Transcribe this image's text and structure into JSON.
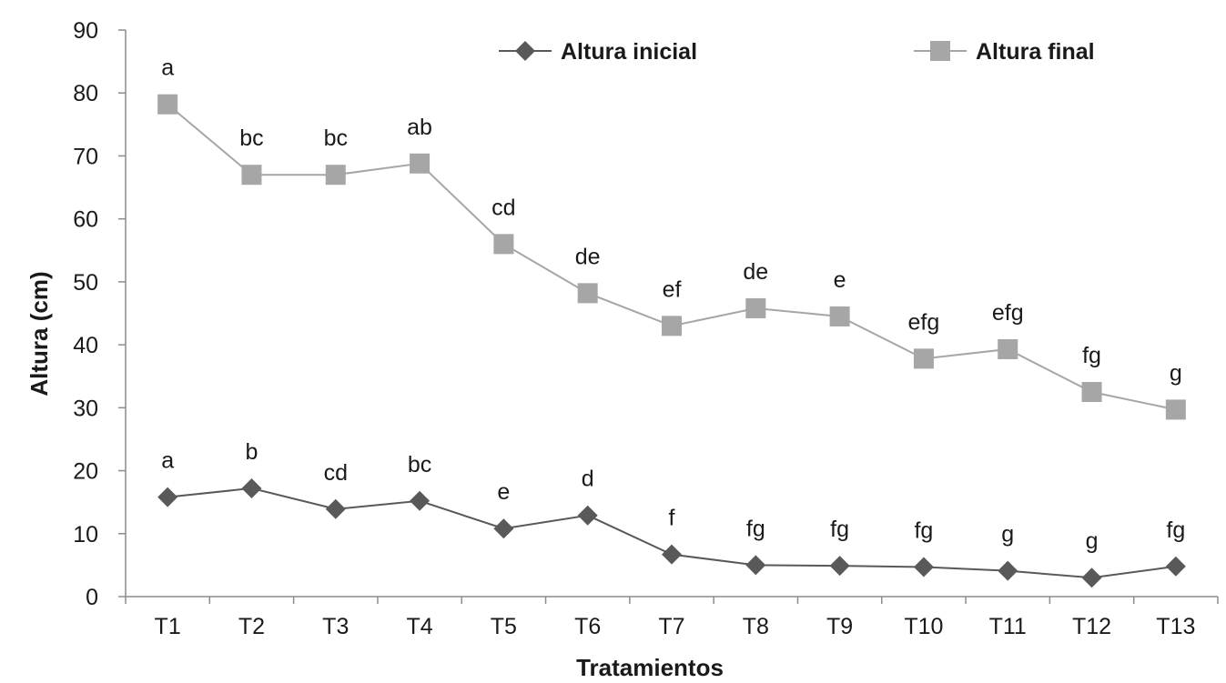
{
  "chart_data": {
    "type": "line",
    "xlabel": "Tratamientos",
    "ylabel": "Altura (cm)",
    "ylim": [
      0,
      90
    ],
    "yticks": [
      0,
      10,
      20,
      30,
      40,
      50,
      60,
      70,
      80,
      90
    ],
    "grid": false,
    "legend_position": "top",
    "categories": [
      "T1",
      "T2",
      "T3",
      "T4",
      "T5",
      "T6",
      "T7",
      "T8",
      "T9",
      "T10",
      "T11",
      "T12",
      "T13"
    ],
    "series": [
      {
        "name": "Altura inicial",
        "marker": "diamond",
        "color": "#595959",
        "values": [
          15.8,
          17.2,
          13.9,
          15.2,
          10.8,
          12.9,
          6.7,
          5.0,
          4.9,
          4.7,
          4.1,
          3.0,
          4.8
        ],
        "labels": [
          "a",
          "b",
          "cd",
          "bc",
          "e",
          "d",
          "f",
          "fg",
          "fg",
          "fg",
          "g",
          "g",
          "fg"
        ]
      },
      {
        "name": "Altura final",
        "marker": "square",
        "color": "#a6a6a6",
        "values": [
          78.2,
          67.0,
          67.0,
          68.8,
          56.0,
          48.2,
          43.0,
          45.8,
          44.5,
          37.8,
          39.3,
          32.5,
          29.7
        ],
        "labels": [
          "a",
          "bc",
          "bc",
          "ab",
          "cd",
          "de",
          "ef",
          "de",
          "e",
          "efg",
          "efg",
          "fg",
          "g"
        ]
      }
    ]
  }
}
